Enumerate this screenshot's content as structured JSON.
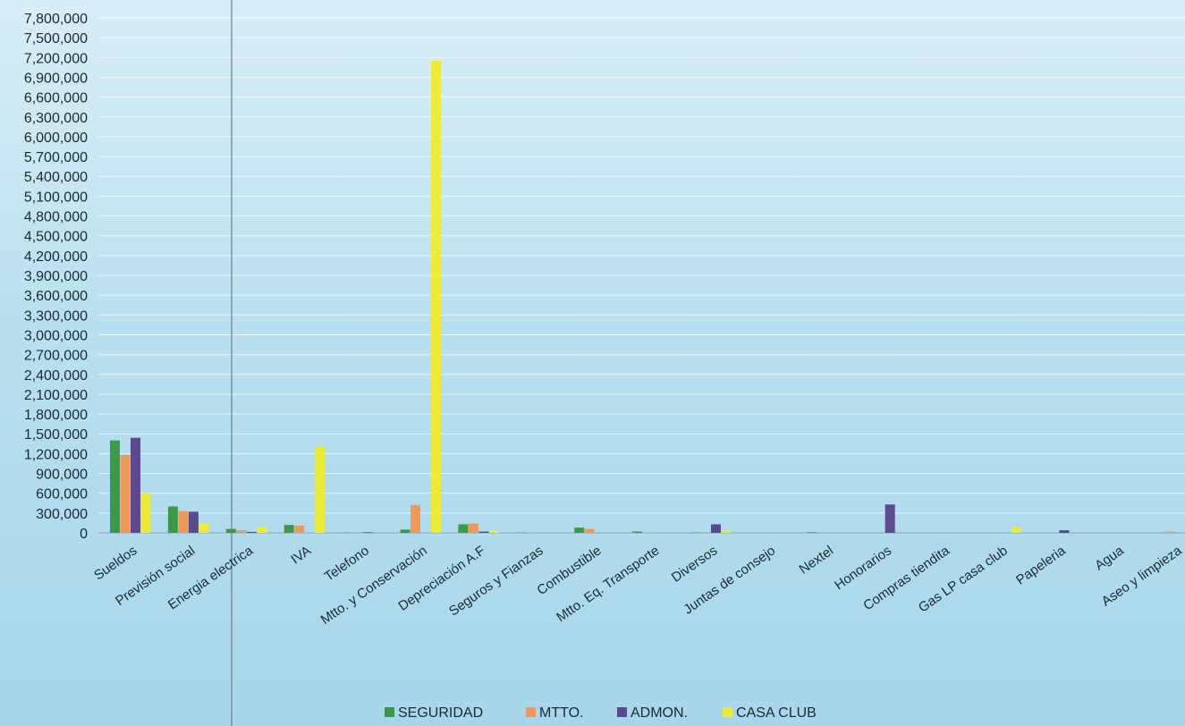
{
  "chart_data": {
    "type": "bar",
    "title": "",
    "xlabel": "",
    "ylabel": "",
    "ylim": [
      0,
      7800000
    ],
    "ytick_step": 300000,
    "grid": true,
    "legend_position": "bottom",
    "categories": [
      "Sueldos",
      "Previsión social",
      "Energia electrica",
      "IVA",
      "Telefono",
      "Mtto. y Conservación",
      "Depreciación A.F",
      "Seguros y Fianzas",
      "Combustible",
      "Mtto. Eq. Transporte",
      "Diversos",
      "Juntas de consejo",
      "Nextel",
      "Honorarios",
      "Compras tiendita",
      "Gas LP casa club",
      "Papeleria",
      "Agua",
      "Aseo y limpieza"
    ],
    "series": [
      {
        "name": "SEGURIDAD",
        "color": "#3a9a4a",
        "values": [
          1400000,
          400000,
          60000,
          120000,
          5000,
          50000,
          130000,
          5000,
          80000,
          20000,
          5000,
          0,
          10000,
          0,
          0,
          0,
          0,
          0,
          0
        ]
      },
      {
        "name": "MTTO.",
        "color": "#f0975a",
        "values": [
          1180000,
          330000,
          40000,
          110000,
          2000,
          420000,
          140000,
          3000,
          60000,
          5000,
          10000,
          0,
          0,
          0,
          0,
          0,
          0,
          0,
          20000
        ]
      },
      {
        "name": "ADMON.",
        "color": "#5b4a8e",
        "values": [
          1440000,
          320000,
          15000,
          0,
          10000,
          0,
          20000,
          0,
          0,
          0,
          130000,
          0,
          0,
          430000,
          0,
          0,
          40000,
          0,
          0
        ]
      },
      {
        "name": "CASA CLUB",
        "color": "#ecea3a",
        "values": [
          600000,
          150000,
          90000,
          1300000,
          0,
          7150000,
          40000,
          0,
          0,
          0,
          40000,
          0,
          0,
          0,
          0,
          90000,
          0,
          0,
          0
        ]
      }
    ]
  }
}
